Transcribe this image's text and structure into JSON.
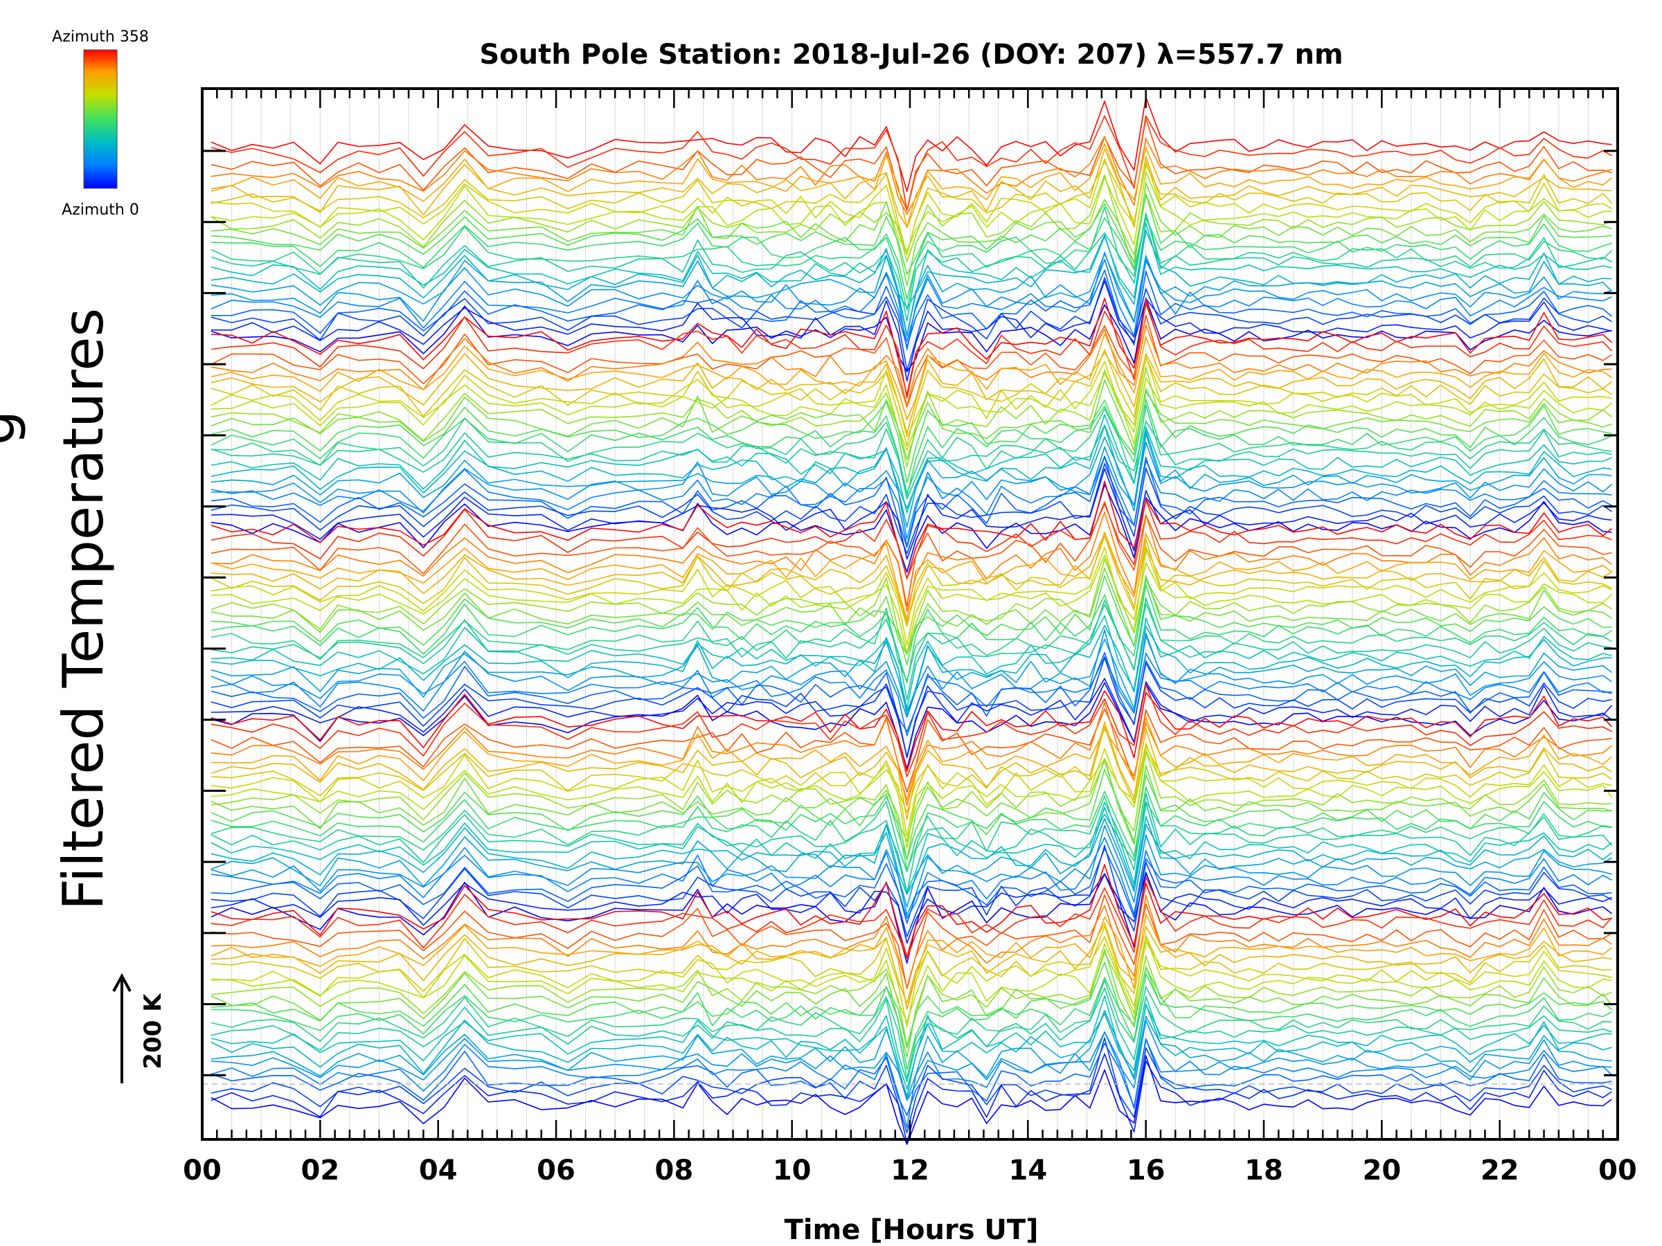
{
  "chart_data": {
    "type": "line",
    "title": "South Pole Station: 2018-Jul-26 (DOY: 207) λ=557.7 nm",
    "xlabel": "Time [Hours UT]",
    "ylabel": "Filtered Temperatures",
    "ylabel_partial": "g",
    "x_ticks": [
      "00",
      "02",
      "04",
      "06",
      "08",
      "10",
      "12",
      "14",
      "16",
      "18",
      "20",
      "22",
      "00"
    ],
    "xlim": [
      0,
      24
    ],
    "x_minor_tick_step_hours": 0.25,
    "y_stack_offsets": 14,
    "grid": "vertical light gray lines at 30-minute intervals",
    "scale_bar": {
      "label": "200 K"
    },
    "colorbar": {
      "top_label": "Azimuth  358",
      "bottom_label": "Azimuth  0",
      "azimuth_range": [
        0,
        358
      ],
      "colors": [
        "#0000ff",
        "#0080ff",
        "#00c0c0",
        "#40e060",
        "#c0e000",
        "#ffa000",
        "#ff0000"
      ]
    },
    "series_groups": {
      "count": 5,
      "lines_per_group": 24,
      "color_by": "azimuth 0 (blue) to 358 (red)"
    },
    "sample_times_hours": [
      0.15,
      0.5,
      0.85,
      1.2,
      1.55,
      2.0,
      2.3,
      2.65,
      3.0,
      3.35,
      3.75,
      4.1,
      4.45,
      4.85,
      5.3,
      5.75,
      6.2,
      6.6,
      7.0,
      7.4,
      7.8,
      8.15,
      8.4,
      8.65,
      8.9,
      9.15,
      9.4,
      9.65,
      9.9,
      10.15,
      10.4,
      10.65,
      10.9,
      11.15,
      11.4,
      11.6,
      11.8,
      11.95,
      12.1,
      12.3,
      12.55,
      12.8,
      13.05,
      13.3,
      13.55,
      13.8,
      14.05,
      14.3,
      14.55,
      14.8,
      15.05,
      15.3,
      15.55,
      15.8,
      16.0,
      16.25,
      16.5,
      16.75,
      17.0,
      17.25,
      17.5,
      17.75,
      18.0,
      18.25,
      18.5,
      18.75,
      19.0,
      19.25,
      19.5,
      19.75,
      20.0,
      20.25,
      20.5,
      20.75,
      21.0,
      21.25,
      21.5,
      21.75,
      22.0,
      22.25,
      22.5,
      22.75,
      23.0,
      23.25,
      23.5,
      23.75,
      23.9
    ],
    "disturbance_events_hours": [
      {
        "t": 2.0,
        "amp": -0.9
      },
      {
        "t": 3.75,
        "amp": -1.1
      },
      {
        "t": 4.45,
        "amp": 1.3
      },
      {
        "t": 6.2,
        "amp": -0.5
      },
      {
        "t": 8.4,
        "amp": 0.9
      },
      {
        "t": 11.6,
        "amp": 1.2
      },
      {
        "t": 11.95,
        "amp": -2.6
      },
      {
        "t": 12.3,
        "amp": 0.8
      },
      {
        "t": 13.3,
        "amp": -0.6
      },
      {
        "t": 15.3,
        "amp": 2.2
      },
      {
        "t": 15.8,
        "amp": -1.8
      },
      {
        "t": 16.0,
        "amp": 2.4
      },
      {
        "t": 21.5,
        "amp": -0.6
      },
      {
        "t": 22.75,
        "amp": 1.1
      }
    ]
  }
}
